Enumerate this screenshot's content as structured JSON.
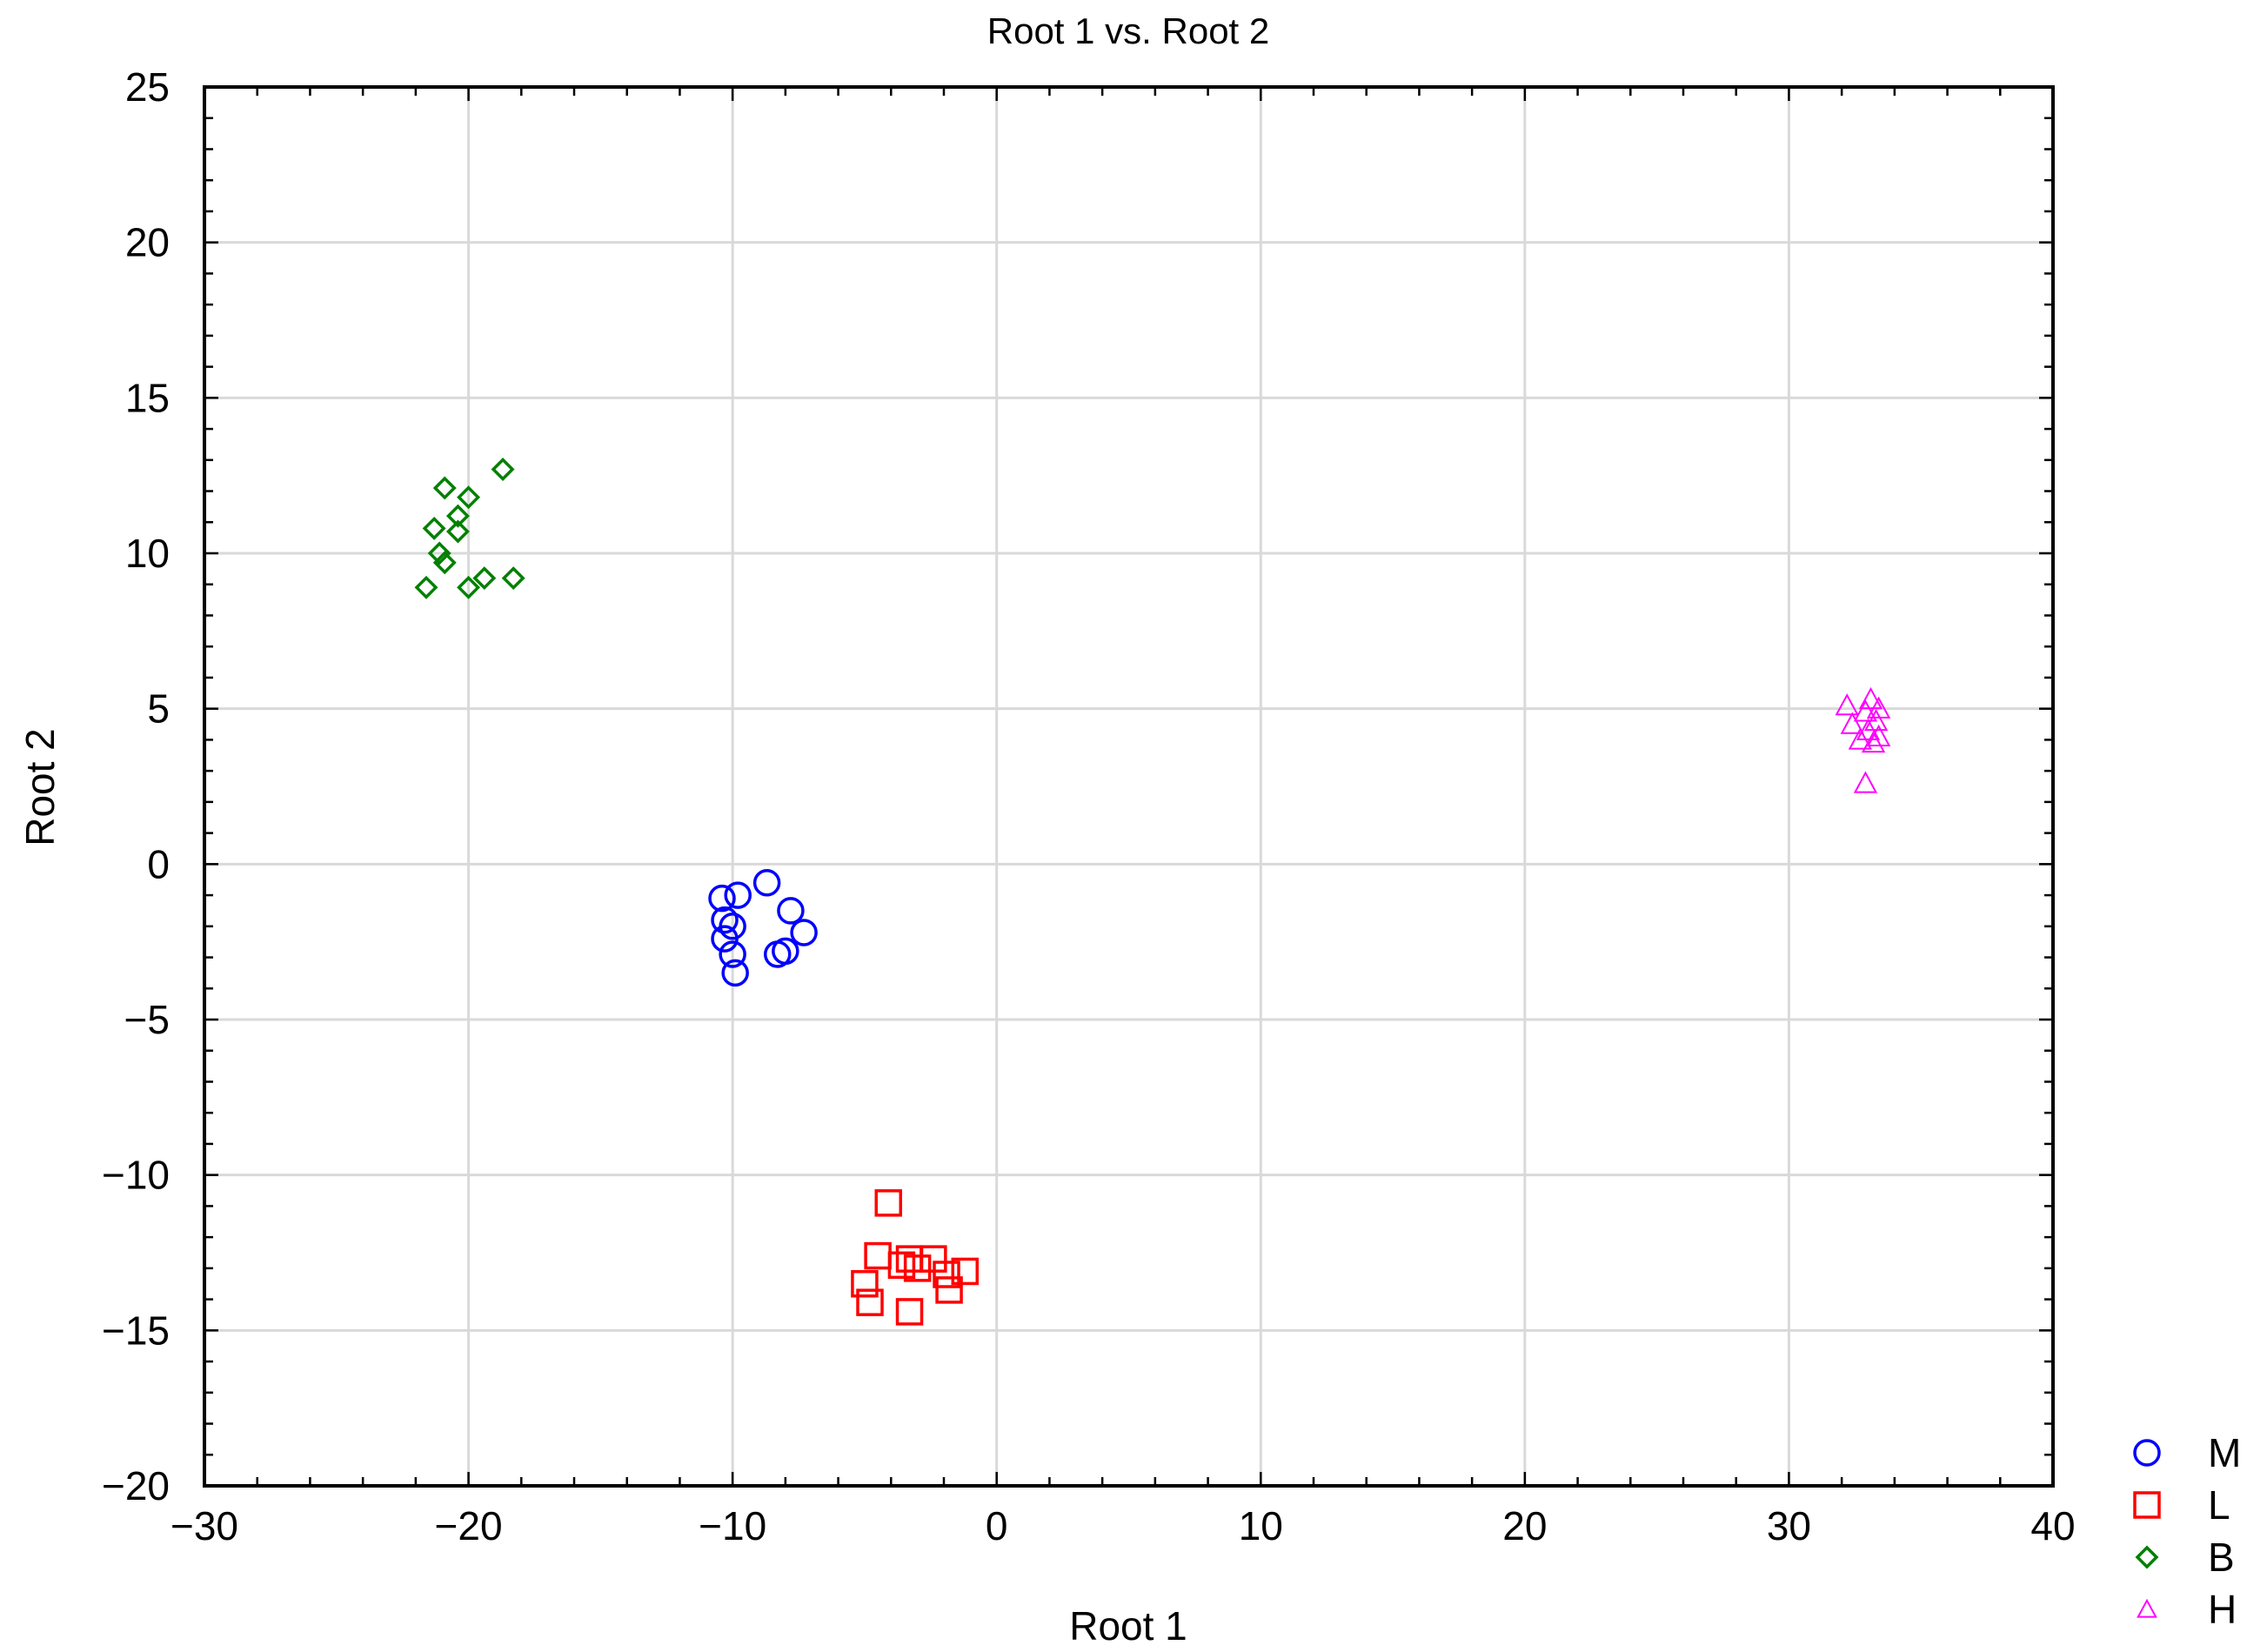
{
  "chart_data": {
    "type": "scatter",
    "title": "Root 1 vs. Root 2",
    "xlabel": "Root 1",
    "ylabel": "Root 2",
    "xlim": [
      -30,
      40
    ],
    "ylim": [
      -20,
      25
    ],
    "xticks": [
      -30,
      -20,
      -10,
      0,
      10,
      20,
      30,
      40
    ],
    "yticks": [
      -20,
      -15,
      -10,
      -5,
      0,
      5,
      10,
      15,
      20,
      25
    ],
    "xtick_labels": [
      "−30",
      "−20",
      "−10",
      "0",
      "10",
      "20",
      "30",
      "40"
    ],
    "ytick_labels": [
      "−20",
      "−15",
      "−10",
      "−5",
      "0",
      "5",
      "10",
      "15",
      "20",
      "25"
    ],
    "grid": true,
    "legend_position": "bottom-right outside",
    "series": [
      {
        "name": "M",
        "marker": "circle",
        "color": "#0000ff",
        "points": [
          [
            -10.4,
            -1.1
          ],
          [
            -9.8,
            -1.0
          ],
          [
            -8.7,
            -0.6
          ],
          [
            -10.3,
            -1.8
          ],
          [
            -10.0,
            -2.0
          ],
          [
            -10.3,
            -2.4
          ],
          [
            -10.0,
            -2.9
          ],
          [
            -9.9,
            -3.5
          ],
          [
            -7.8,
            -1.5
          ],
          [
            -7.3,
            -2.2
          ],
          [
            -8.0,
            -2.8
          ],
          [
            -8.3,
            -2.9
          ]
        ]
      },
      {
        "name": "L",
        "marker": "square",
        "color": "#ff0000",
        "points": [
          [
            -4.1,
            -10.9
          ],
          [
            -4.5,
            -12.6
          ],
          [
            -3.6,
            -12.9
          ],
          [
            -3.3,
            -12.7
          ],
          [
            -3.0,
            -13.0
          ],
          [
            -2.4,
            -12.7
          ],
          [
            -1.9,
            -13.2
          ],
          [
            -1.2,
            -13.1
          ],
          [
            -5.0,
            -13.5
          ],
          [
            -4.8,
            -14.1
          ],
          [
            -3.3,
            -14.4
          ],
          [
            -1.8,
            -13.7
          ]
        ]
      },
      {
        "name": "B",
        "marker": "diamond",
        "color": "#008000",
        "points": [
          [
            -18.7,
            12.7
          ],
          [
            -20.9,
            12.1
          ],
          [
            -20.0,
            11.8
          ],
          [
            -20.4,
            11.2
          ],
          [
            -21.3,
            10.8
          ],
          [
            -20.4,
            10.7
          ],
          [
            -21.1,
            10.0
          ],
          [
            -20.9,
            9.7
          ],
          [
            -21.6,
            8.9
          ],
          [
            -19.4,
            9.2
          ],
          [
            -18.3,
            9.2
          ],
          [
            -20.0,
            8.9
          ]
        ]
      },
      {
        "name": "H",
        "marker": "triangle",
        "color": "#ff00ff",
        "points": [
          [
            32.2,
            5.1
          ],
          [
            33.1,
            5.3
          ],
          [
            33.4,
            5.0
          ],
          [
            32.9,
            4.9
          ],
          [
            33.3,
            4.6
          ],
          [
            32.4,
            4.5
          ],
          [
            33.0,
            4.3
          ],
          [
            33.4,
            4.1
          ],
          [
            32.7,
            4.0
          ],
          [
            33.2,
            3.9
          ],
          [
            32.9,
            2.6
          ]
        ]
      }
    ]
  }
}
